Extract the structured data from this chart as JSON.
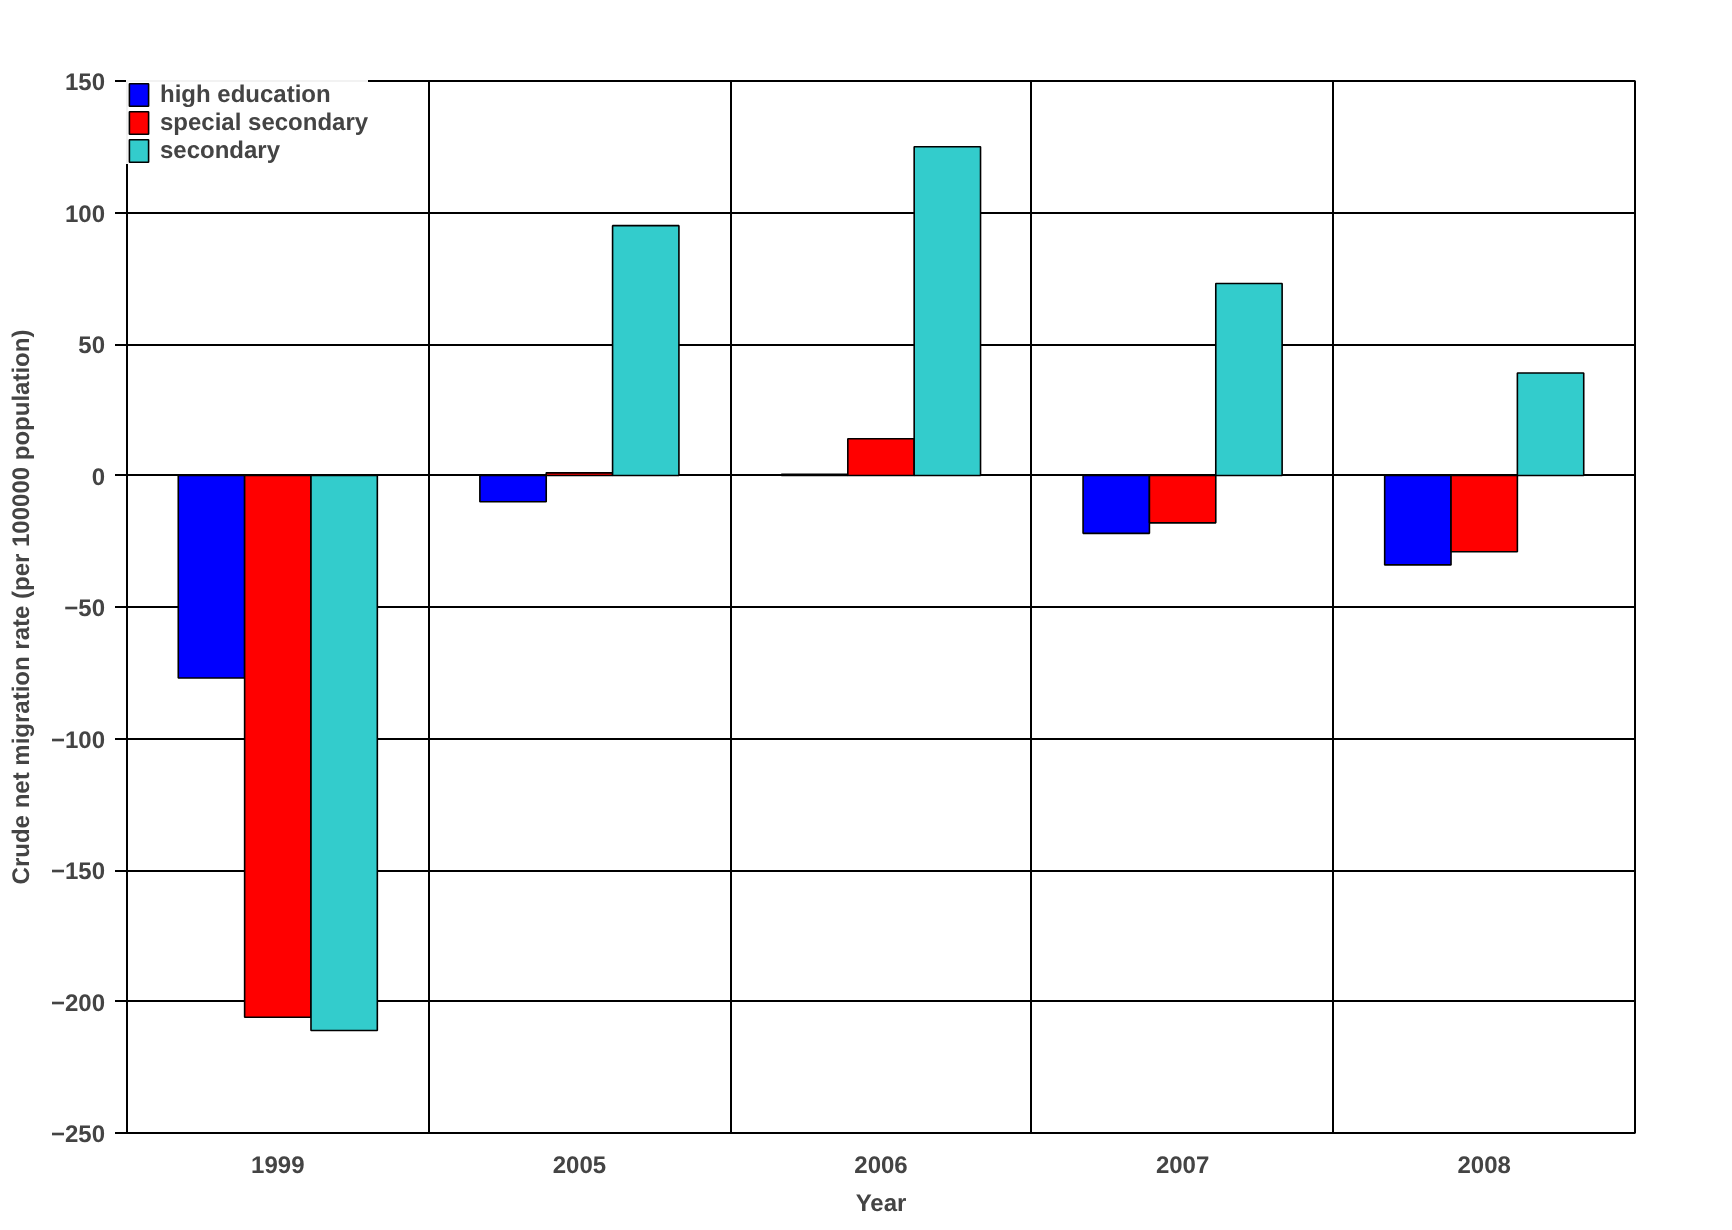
{
  "chart_data": {
    "type": "bar",
    "xlabel": "Year",
    "ylabel": "Crude net migration rate (per 100000 population)",
    "categories": [
      "1999",
      "2005",
      "2006",
      "2007",
      "2008"
    ],
    "series": [
      {
        "name": "high education",
        "color": "#0000ff",
        "values": [
          -77,
          -10,
          0.5,
          -22,
          -34
        ]
      },
      {
        "name": "special secondary",
        "color": "#ff0000",
        "values": [
          -206,
          1,
          14,
          -18,
          -29
        ]
      },
      {
        "name": "secondary",
        "color": "#33cccc",
        "values": [
          -211,
          95,
          125,
          73,
          39
        ]
      }
    ],
    "ylim": [
      -250,
      150
    ],
    "yticks": [
      -250,
      -200,
      -150,
      -100,
      -50,
      0,
      50,
      100,
      150
    ],
    "grid": true,
    "legend": "top left"
  }
}
